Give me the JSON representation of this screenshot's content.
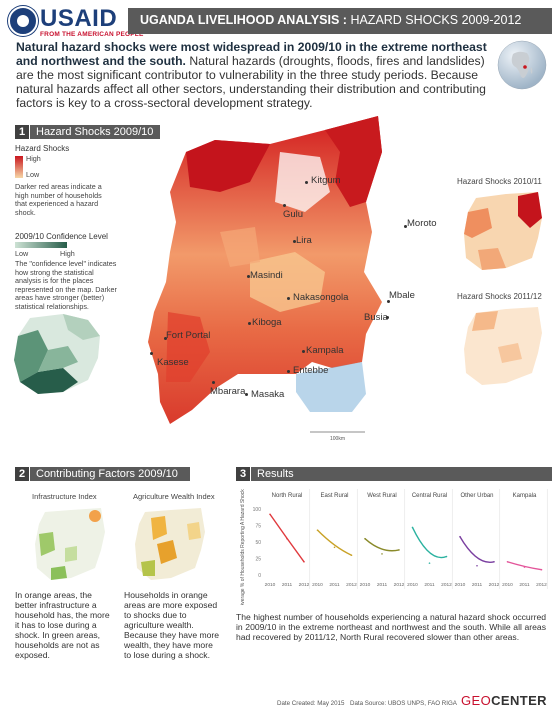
{
  "logo": {
    "name": "USAID",
    "tagline": "FROM THE AMERICAN PEOPLE"
  },
  "header": {
    "title_bold": "UGANDA LIVELIHOOD ANALYSIS :",
    "title_rest": " HAZARD SHOCKS 2009-2012"
  },
  "intro": {
    "bold": "Natural hazard shocks were most widespread in 2009/10 in the extreme northeast and northwest and the south.",
    "rest": " Natural hazards (droughts, floods, fires and landslides) are the most significant contributor to vulnerability in the three study periods. Because natural hazards affect all other sectors, understanding their distribution and contributing factors is key to a cross-sectoral development strategy."
  },
  "section1": {
    "number": "1",
    "title": "Hazard Shocks 2009/10",
    "legend_title": "Hazard Shocks",
    "legend_high": "High",
    "legend_low": "Low",
    "legend_note": "Darker red areas indicate a high number of households that experienced a hazard shock.",
    "confidence_title": "2009/10 Confidence Level",
    "confidence_low": "Low",
    "confidence_high": "High",
    "confidence_note": "The \"confidence level\" indicates how strong the statistical analysis is for the places represented on the map. Darker areas have stronger (better) statistical relationships.",
    "scale": "100km",
    "cities": [
      "Kitgum",
      "Gulu",
      "Lira",
      "Moroto",
      "Masindi",
      "Nakasongola",
      "Mbale",
      "Busia",
      "Kiboga",
      "Fort Portal",
      "Kasese",
      "Kampala",
      "Entebbe",
      "Mbarara",
      "Masaka"
    ]
  },
  "inset_2010": "Hazard Shocks 2010/11",
  "inset_2011": "Hazard Shocks 2011/12",
  "section2": {
    "number": "2",
    "title": "Contributing Factors 2009/10",
    "map1_title": "Infrastructure Index",
    "map2_title": "Agriculture Wealth Index",
    "text1": "In orange areas, the better infrastructure a household has, the more it has to lose during a shock. In green areas, households are not as exposed.",
    "text2": "Households in orange areas are more exposed to shocks due to agriculture wealth. Because they have more wealth, they have more to lose during a shock."
  },
  "section3": {
    "number": "3",
    "title": "Results",
    "ylabel": "Average % of Households Reporting A Hazard Shock",
    "text": "The highest number of households experiencing a natural hazard shock occurred in 2009/10 in the extreme northeast and northwest and the south. While all areas had recovered by 2011/12, North Rural recovered slower than other areas."
  },
  "chart_data": {
    "type": "line",
    "ylabel": "Average % of Households Reporting A Hazard Shock",
    "ylim": [
      0,
      100
    ],
    "yticks": [
      0,
      25,
      50,
      75,
      100
    ],
    "categories": [
      "2010",
      "2011",
      "2012"
    ],
    "series": [
      {
        "name": "North Rural",
        "values": [
          92,
          55,
          20
        ],
        "color": "#e03a3e"
      },
      {
        "name": "East Rural",
        "values": [
          68,
          42,
          30
        ],
        "color": "#c9a227"
      },
      {
        "name": "West Rural",
        "values": [
          55,
          32,
          38
        ],
        "color": "#8a8a2a"
      },
      {
        "name": "Central Rural",
        "values": [
          72,
          18,
          28
        ],
        "color": "#2bb2a0"
      },
      {
        "name": "Other Urban",
        "values": [
          58,
          14,
          20
        ],
        "color": "#7a3fa0"
      },
      {
        "name": "Kampala",
        "values": [
          20,
          12,
          8
        ],
        "color": "#e3559a"
      }
    ]
  },
  "footer": {
    "date": "Date Created: May 2015",
    "source": "Data Source: UBOS UNPS, FAO RIGA",
    "brand_a": "GEO",
    "brand_b": "CENTER"
  },
  "colors": {
    "header_bar": "#5a5a5a",
    "high": "#c9161e",
    "low": "#f6d7a7",
    "conf_high": "#275d4a",
    "usaid_blue": "#1d3f7a",
    "usaid_red": "#c8102e"
  }
}
